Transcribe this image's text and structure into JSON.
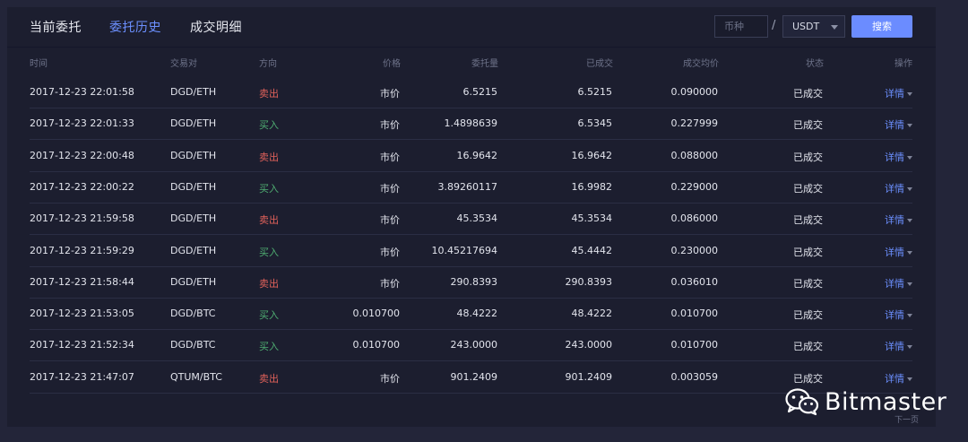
{
  "tabs": [
    {
      "label": "当前委托",
      "active": false
    },
    {
      "label": "委托历史",
      "active": true
    },
    {
      "label": "成交明细",
      "active": false
    }
  ],
  "filter": {
    "coin_placeholder": "币种",
    "separator": "/",
    "quote_selected": "USDT",
    "search_label": "搜索"
  },
  "table": {
    "headers": [
      "时间",
      "交易对",
      "方向",
      "价格",
      "委托量",
      "已成交",
      "成交均价",
      "状态",
      "操作"
    ],
    "rows": [
      {
        "time": "2017-12-23 22:01:58",
        "pair": "DGD/ETH",
        "side": "卖出",
        "side_type": "sell",
        "price": "市价",
        "amount": "6.5215",
        "filled": "6.5215",
        "avg": "0.090000",
        "status": "已成交",
        "action": "详情"
      },
      {
        "time": "2017-12-23 22:01:33",
        "pair": "DGD/ETH",
        "side": "买入",
        "side_type": "buy",
        "price": "市价",
        "amount": "1.4898639",
        "filled": "6.5345",
        "avg": "0.227999",
        "status": "已成交",
        "action": "详情"
      },
      {
        "time": "2017-12-23 22:00:48",
        "pair": "DGD/ETH",
        "side": "卖出",
        "side_type": "sell",
        "price": "市价",
        "amount": "16.9642",
        "filled": "16.9642",
        "avg": "0.088000",
        "status": "已成交",
        "action": "详情"
      },
      {
        "time": "2017-12-23 22:00:22",
        "pair": "DGD/ETH",
        "side": "买入",
        "side_type": "buy",
        "price": "市价",
        "amount": "3.89260117",
        "filled": "16.9982",
        "avg": "0.229000",
        "status": "已成交",
        "action": "详情"
      },
      {
        "time": "2017-12-23 21:59:58",
        "pair": "DGD/ETH",
        "side": "卖出",
        "side_type": "sell",
        "price": "市价",
        "amount": "45.3534",
        "filled": "45.3534",
        "avg": "0.086000",
        "status": "已成交",
        "action": "详情"
      },
      {
        "time": "2017-12-23 21:59:29",
        "pair": "DGD/ETH",
        "side": "买入",
        "side_type": "buy",
        "price": "市价",
        "amount": "10.45217694",
        "filled": "45.4442",
        "avg": "0.230000",
        "status": "已成交",
        "action": "详情"
      },
      {
        "time": "2017-12-23 21:58:44",
        "pair": "DGD/ETH",
        "side": "卖出",
        "side_type": "sell",
        "price": "市价",
        "amount": "290.8393",
        "filled": "290.8393",
        "avg": "0.036010",
        "status": "已成交",
        "action": "详情"
      },
      {
        "time": "2017-12-23 21:53:05",
        "pair": "DGD/BTC",
        "side": "买入",
        "side_type": "buy",
        "price": "0.010700",
        "amount": "48.4222",
        "filled": "48.4222",
        "avg": "0.010700",
        "status": "已成交",
        "action": "详情"
      },
      {
        "time": "2017-12-23 21:52:34",
        "pair": "DGD/BTC",
        "side": "买入",
        "side_type": "buy",
        "price": "0.010700",
        "amount": "243.0000",
        "filled": "243.0000",
        "avg": "0.010700",
        "status": "已成交",
        "action": "详情"
      },
      {
        "time": "2017-12-23 21:47:07",
        "pair": "QTUM/BTC",
        "side": "卖出",
        "side_type": "sell",
        "price": "市价",
        "amount": "901.2409",
        "filled": "901.2409",
        "avg": "0.003059",
        "status": "已成交",
        "action": "详情"
      }
    ]
  },
  "colors": {
    "accent": "#6c90ff",
    "sell": "#e0615a",
    "buy": "#4fae72"
  },
  "watermark": {
    "icon": "wechat-icon",
    "text": "Bitmaster",
    "small": "下一页"
  }
}
